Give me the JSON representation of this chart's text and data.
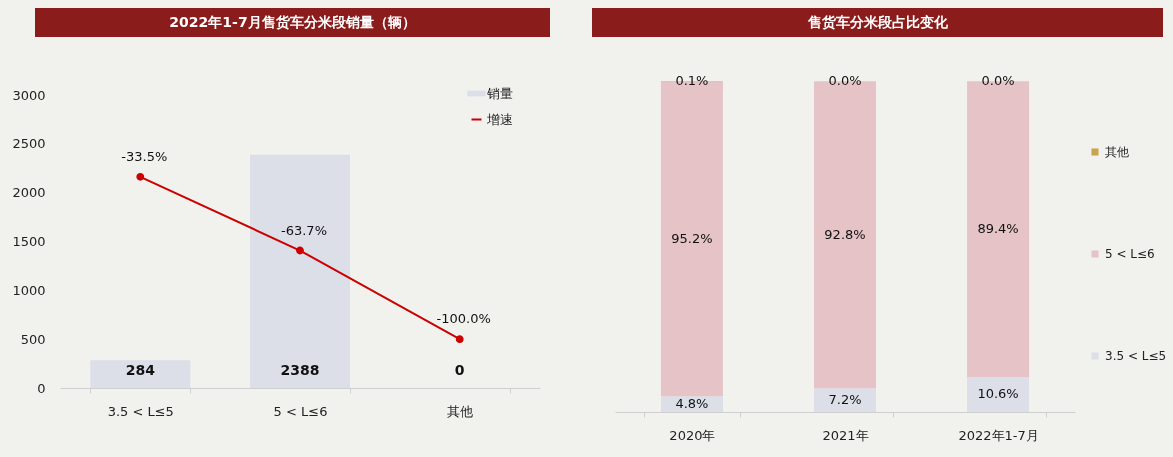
{
  "chart_data": [
    {
      "type": "bar",
      "title": "2022年1-7月售货车分米段销量（辆）",
      "categories": [
        "3.5 < L≤5",
        "5 < L≤6",
        "其他"
      ],
      "series": [
        {
          "name": "销量",
          "type": "bar",
          "color": "#dcdee8",
          "values": [
            284,
            2388,
            0
          ],
          "value_labels": [
            "284",
            "2388",
            "0"
          ]
        },
        {
          "name": "增速",
          "type": "line",
          "axis": "y2",
          "color": "#cc0000",
          "values": [
            -33.5,
            -63.7,
            -100.0
          ],
          "value_labels": [
            "-33.5%",
            "-63.7%",
            "-100.0%"
          ]
        }
      ],
      "ylim": [
        0,
        3000
      ],
      "yticks": [
        0,
        500,
        1000,
        1500,
        2000,
        2500,
        3000
      ],
      "y2lim": [
        -120,
        0
      ],
      "legend": "top right",
      "marker": "circle",
      "grid": false
    },
    {
      "type": "bar",
      "stacked": true,
      "title": "售货车分米段占比变化",
      "categories": [
        "2020年",
        "2021年",
        "2022年1-7月"
      ],
      "series": [
        {
          "name": "3.5 < L≤5",
          "color": "#dcdee8",
          "values": [
            4.8,
            7.2,
            10.6
          ],
          "value_labels": [
            "4.8%",
            "7.2%",
            "10.6%"
          ]
        },
        {
          "name": "5 < L≤6",
          "color": "#e5c3c6",
          "values": [
            95.2,
            92.8,
            89.4
          ],
          "value_labels": [
            "95.2%",
            "92.8%",
            "89.4%"
          ]
        },
        {
          "name": "其他",
          "color": "#c9a44c",
          "values": [
            0.1,
            0.0,
            0.0
          ],
          "value_labels": [
            "0.1%",
            "0.0%",
            "0.0%"
          ]
        }
      ],
      "ylim": [
        0,
        100.1
      ],
      "tick_labels": "x",
      "legend": "right",
      "grid": false
    }
  ]
}
